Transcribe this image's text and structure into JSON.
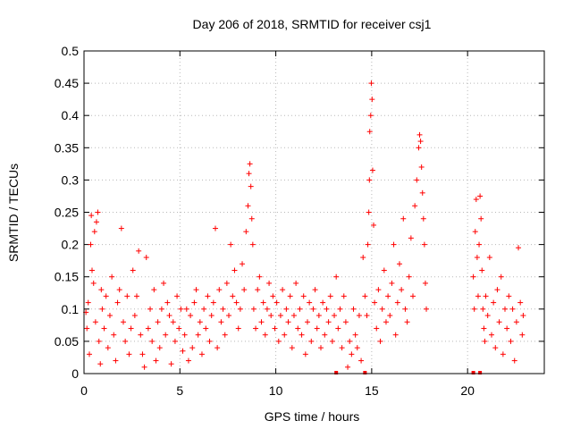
{
  "chart_data": {
    "type": "scatter",
    "title": "Day 206 of 2018, SRMTID for receiver csj1",
    "xlabel": "GPS time / hours",
    "ylabel": "SRMTID / TECUs",
    "xlim": [
      0,
      24
    ],
    "ylim": [
      0,
      0.5
    ],
    "xticks": [
      0,
      5,
      10,
      15,
      20
    ],
    "xtick_labels": [
      "0",
      "5",
      "10",
      "15",
      "20"
    ],
    "yticks": [
      0,
      0.05,
      0.1,
      0.15,
      0.2,
      0.25,
      0.3,
      0.35,
      0.4,
      0.45,
      0.5
    ],
    "ytick_labels": [
      "0",
      "0.05",
      "0.1",
      "0.15",
      "0.2",
      "0.25",
      "0.3",
      "0.35",
      "0.4",
      "0.45",
      "0.5"
    ],
    "grid": true,
    "marker": "+",
    "color": "#ff0000",
    "series": [
      {
        "name": "SRMTID",
        "points": [
          [
            0.1,
            0.095
          ],
          [
            0.15,
            0.07
          ],
          [
            0.22,
            0.11
          ],
          [
            0.28,
            0.03
          ],
          [
            0.35,
            0.2
          ],
          [
            0.38,
            0.245
          ],
          [
            0.42,
            0.16
          ],
          [
            0.5,
            0.14
          ],
          [
            0.55,
            0.22
          ],
          [
            0.6,
            0.08
          ],
          [
            0.65,
            0.235
          ],
          [
            0.72,
            0.25
          ],
          [
            0.78,
            0.05
          ],
          [
            0.85,
            0.015
          ],
          [
            0.9,
            0.13
          ],
          [
            0.95,
            0.1
          ],
          [
            1.05,
            0.07
          ],
          [
            1.15,
            0.12
          ],
          [
            1.25,
            0.04
          ],
          [
            1.35,
            0.09
          ],
          [
            1.45,
            0.15
          ],
          [
            1.55,
            0.06
          ],
          [
            1.65,
            0.02
          ],
          [
            1.75,
            0.11
          ],
          [
            1.85,
            0.13
          ],
          [
            1.95,
            0.225
          ],
          [
            2.05,
            0.08
          ],
          [
            2.15,
            0.05
          ],
          [
            2.25,
            0.12
          ],
          [
            2.35,
            0.03
          ],
          [
            2.45,
            0.07
          ],
          [
            2.55,
            0.16
          ],
          [
            2.65,
            0.09
          ],
          [
            2.75,
            0.12
          ],
          [
            2.85,
            0.19
          ],
          [
            2.95,
            0.06
          ],
          [
            3.05,
            0.03
          ],
          [
            3.15,
            0.01
          ],
          [
            3.25,
            0.18
          ],
          [
            3.35,
            0.07
          ],
          [
            3.45,
            0.1
          ],
          [
            3.55,
            0.05
          ],
          [
            3.65,
            0.13
          ],
          [
            3.75,
            0.02
          ],
          [
            3.85,
            0.08
          ],
          [
            3.95,
            0.04
          ],
          [
            4.05,
            0.1
          ],
          [
            4.15,
            0.14
          ],
          [
            4.25,
            0.06
          ],
          [
            4.35,
            0.11
          ],
          [
            4.45,
            0.09
          ],
          [
            4.55,
            0.015
          ],
          [
            4.65,
            0.08
          ],
          [
            4.75,
            0.05
          ],
          [
            4.85,
            0.12
          ],
          [
            4.95,
            0.07
          ],
          [
            5.05,
            0.1
          ],
          [
            5.15,
            0.035
          ],
          [
            5.25,
            0.06
          ],
          [
            5.35,
            0.1
          ],
          [
            5.45,
            0.02
          ],
          [
            5.55,
            0.09
          ],
          [
            5.65,
            0.04
          ],
          [
            5.75,
            0.11
          ],
          [
            5.85,
            0.13
          ],
          [
            5.95,
            0.06
          ],
          [
            6.05,
            0.08
          ],
          [
            6.15,
            0.03
          ],
          [
            6.25,
            0.1
          ],
          [
            6.35,
            0.07
          ],
          [
            6.45,
            0.12
          ],
          [
            6.55,
            0.05
          ],
          [
            6.65,
            0.09
          ],
          [
            6.75,
            0.11
          ],
          [
            6.85,
            0.225
          ],
          [
            6.95,
            0.04
          ],
          [
            7.05,
            0.13
          ],
          [
            7.15,
            0.08
          ],
          [
            7.25,
            0.1
          ],
          [
            7.35,
            0.06
          ],
          [
            7.45,
            0.14
          ],
          [
            7.55,
            0.09
          ],
          [
            7.65,
            0.2
          ],
          [
            7.75,
            0.12
          ],
          [
            7.85,
            0.16
          ],
          [
            7.95,
            0.11
          ],
          [
            8.05,
            0.07
          ],
          [
            8.15,
            0.1
          ],
          [
            8.25,
            0.17
          ],
          [
            8.35,
            0.13
          ],
          [
            8.45,
            0.22
          ],
          [
            8.55,
            0.26
          ],
          [
            8.6,
            0.31
          ],
          [
            8.65,
            0.325
          ],
          [
            8.7,
            0.29
          ],
          [
            8.75,
            0.24
          ],
          [
            8.8,
            0.2
          ],
          [
            8.85,
            0.1
          ],
          [
            8.95,
            0.07
          ],
          [
            9.05,
            0.13
          ],
          [
            9.15,
            0.15
          ],
          [
            9.25,
            0.08
          ],
          [
            9.35,
            0.11
          ],
          [
            9.45,
            0.06
          ],
          [
            9.55,
            0.1
          ],
          [
            9.65,
            0.14
          ],
          [
            9.75,
            0.09
          ],
          [
            9.85,
            0.12
          ],
          [
            9.95,
            0.07
          ],
          [
            10.05,
            0.11
          ],
          [
            10.15,
            0.05
          ],
          [
            10.25,
            0.09
          ],
          [
            10.35,
            0.13
          ],
          [
            10.45,
            0.06
          ],
          [
            10.55,
            0.1
          ],
          [
            10.65,
            0.08
          ],
          [
            10.75,
            0.12
          ],
          [
            10.85,
            0.04
          ],
          [
            10.95,
            0.09
          ],
          [
            11.05,
            0.14
          ],
          [
            11.15,
            0.07
          ],
          [
            11.25,
            0.1
          ],
          [
            11.35,
            0.06
          ],
          [
            11.45,
            0.12
          ],
          [
            11.55,
            0.03
          ],
          [
            11.65,
            0.08
          ],
          [
            11.75,
            0.11
          ],
          [
            11.85,
            0.05
          ],
          [
            11.95,
            0.1
          ],
          [
            12.05,
            0.13
          ],
          [
            12.15,
            0.07
          ],
          [
            12.25,
            0.09
          ],
          [
            12.35,
            0.04
          ],
          [
            12.45,
            0.11
          ],
          [
            12.55,
            0.06
          ],
          [
            12.65,
            0.1
          ],
          [
            12.75,
            0.08
          ],
          [
            12.85,
            0.12
          ],
          [
            12.95,
            0.05
          ],
          [
            13.05,
            0.09
          ],
          [
            13.15,
            0.15
          ],
          [
            13.25,
            0.07
          ],
          [
            13.35,
            0.1
          ],
          [
            13.45,
            0.04
          ],
          [
            13.55,
            0.12
          ],
          [
            13.65,
            0.08
          ],
          [
            13.75,
            0.01
          ],
          [
            13.85,
            0.05
          ],
          [
            13.95,
            0.03
          ],
          [
            14.05,
            0.1
          ],
          [
            14.15,
            0.06
          ],
          [
            14.25,
            0.04
          ],
          [
            14.35,
            0.09
          ],
          [
            14.45,
            0.02
          ],
          [
            14.55,
            0.18
          ],
          [
            14.65,
            0.12
          ],
          [
            14.75,
            0.09
          ],
          [
            14.8,
            0.2
          ],
          [
            14.85,
            0.25
          ],
          [
            14.88,
            0.3
          ],
          [
            14.9,
            0.375
          ],
          [
            14.95,
            0.4
          ],
          [
            14.98,
            0.45
          ],
          [
            15.02,
            0.425
          ],
          [
            15.05,
            0.315
          ],
          [
            15.1,
            0.23
          ],
          [
            15.15,
            0.11
          ],
          [
            15.25,
            0.07
          ],
          [
            15.35,
            0.13
          ],
          [
            15.45,
            0.05
          ],
          [
            15.55,
            0.1
          ],
          [
            15.65,
            0.16
          ],
          [
            15.75,
            0.08
          ],
          [
            15.85,
            0.12
          ],
          [
            15.95,
            0.09
          ],
          [
            16.05,
            0.14
          ],
          [
            16.15,
            0.2
          ],
          [
            16.25,
            0.06
          ],
          [
            16.35,
            0.11
          ],
          [
            16.45,
            0.17
          ],
          [
            16.55,
            0.13
          ],
          [
            16.65,
            0.24
          ],
          [
            16.75,
            0.1
          ],
          [
            16.85,
            0.08
          ],
          [
            16.95,
            0.15
          ],
          [
            17.05,
            0.21
          ],
          [
            17.15,
            0.12
          ],
          [
            17.25,
            0.26
          ],
          [
            17.35,
            0.3
          ],
          [
            17.45,
            0.35
          ],
          [
            17.5,
            0.37
          ],
          [
            17.55,
            0.36
          ],
          [
            17.6,
            0.32
          ],
          [
            17.65,
            0.28
          ],
          [
            17.7,
            0.24
          ],
          [
            17.75,
            0.2
          ],
          [
            17.8,
            0.14
          ],
          [
            17.85,
            0.1
          ],
          [
            20.3,
            0.15
          ],
          [
            20.35,
            0.1
          ],
          [
            20.4,
            0.22
          ],
          [
            20.45,
            0.27
          ],
          [
            20.5,
            0.18
          ],
          [
            20.55,
            0.12
          ],
          [
            20.6,
            0.2
          ],
          [
            20.65,
            0.275
          ],
          [
            20.7,
            0.24
          ],
          [
            20.75,
            0.16
          ],
          [
            20.8,
            0.1
          ],
          [
            20.85,
            0.07
          ],
          [
            20.9,
            0.05
          ],
          [
            20.95,
            0.12
          ],
          [
            21.05,
            0.09
          ],
          [
            21.15,
            0.18
          ],
          [
            21.25,
            0.06
          ],
          [
            21.35,
            0.11
          ],
          [
            21.45,
            0.04
          ],
          [
            21.55,
            0.13
          ],
          [
            21.65,
            0.08
          ],
          [
            21.75,
            0.15
          ],
          [
            21.85,
            0.03
          ],
          [
            21.95,
            0.1
          ],
          [
            22.05,
            0.07
          ],
          [
            22.15,
            0.12
          ],
          [
            22.25,
            0.05
          ],
          [
            22.35,
            0.1
          ],
          [
            22.45,
            0.02
          ],
          [
            22.55,
            0.08
          ],
          [
            22.65,
            0.195
          ],
          [
            22.75,
            0.11
          ],
          [
            22.85,
            0.06
          ],
          [
            22.9,
            0.09
          ]
        ]
      }
    ],
    "markers_on_axis": [
      13.15,
      14.65,
      20.3,
      20.65
    ]
  }
}
